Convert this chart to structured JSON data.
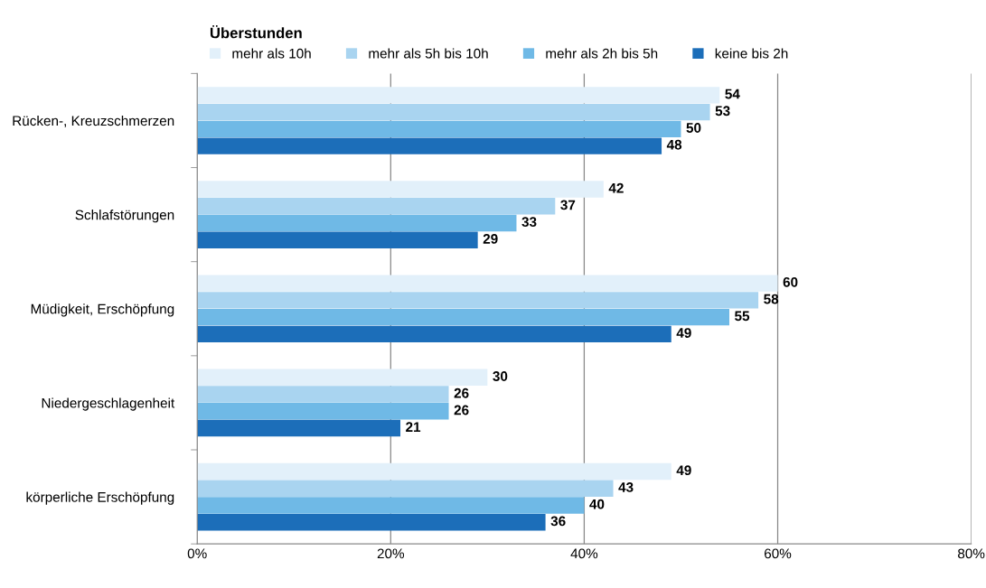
{
  "chart_data": {
    "type": "bar",
    "orientation": "horizontal",
    "legend_title": "Überstunden",
    "legend": "top",
    "grid": "x",
    "data_labels": true,
    "categories": [
      "Rücken-, Kreuzschmerzen",
      "Schlafstörungen",
      "Müdigkeit, Erschöpfung",
      "Niedergeschlagenheit",
      "körperliche Erschöpfung"
    ],
    "series": [
      {
        "name": "mehr als 10h",
        "color": "#e2f0fa",
        "values": [
          54,
          42,
          60,
          30,
          49
        ]
      },
      {
        "name": "mehr als 5h bis 10h",
        "color": "#a9d4f0",
        "values": [
          53,
          37,
          58,
          26,
          43
        ]
      },
      {
        "name": "mehr als 2h bis 5h",
        "color": "#6fb9e6",
        "values": [
          50,
          33,
          55,
          26,
          40
        ]
      },
      {
        "name": "keine bis 2h",
        "color": "#1c6eb9",
        "values": [
          48,
          29,
          49,
          21,
          36
        ]
      }
    ],
    "xlim": [
      0,
      80
    ],
    "xticks": [
      {
        "value": 0,
        "label": "0%"
      },
      {
        "value": 20,
        "label": "20%"
      },
      {
        "value": 40,
        "label": "40%"
      },
      {
        "value": 60,
        "label": "60%"
      },
      {
        "value": 80,
        "label": "80%"
      }
    ]
  }
}
